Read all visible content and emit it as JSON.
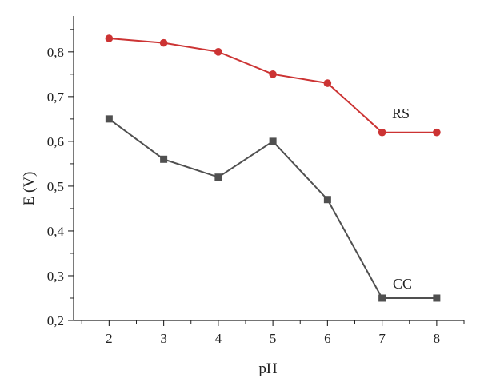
{
  "chart_data": {
    "type": "line",
    "title": "",
    "xlabel": "pH",
    "ylabel": "E (V)",
    "x": [
      2,
      3,
      4,
      5,
      6,
      7,
      8
    ],
    "xlim": [
      1.35,
      8.5
    ],
    "ylim": [
      0.2,
      0.88
    ],
    "x_ticks": [
      "2",
      "3",
      "4",
      "5",
      "6",
      "7",
      "8"
    ],
    "y_ticks": [
      "0,2",
      "0,3",
      "0,4",
      "0,5",
      "0,6",
      "0,7",
      "0,8"
    ],
    "y_tick_values": [
      0.2,
      0.3,
      0.4,
      0.5,
      0.6,
      0.7,
      0.8
    ],
    "grid": false,
    "legend": "none",
    "series": [
      {
        "name": "RS",
        "values": [
          0.83,
          0.82,
          0.8,
          0.75,
          0.73,
          0.62,
          0.62
        ],
        "color": "#cc3333",
        "marker": "circle"
      },
      {
        "name": "CC",
        "values": [
          0.65,
          0.56,
          0.52,
          0.6,
          0.47,
          0.25,
          0.25
        ],
        "color": "#505050",
        "marker": "square"
      }
    ]
  }
}
